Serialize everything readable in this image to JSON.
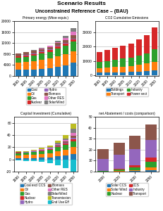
{
  "title": "Scenario Results",
  "subtitle": "Unconstrained Reference Case – (BAU)",
  "chart_data": [
    {
      "type": "bar",
      "title": "Primary energy (Mtoe equiv.)",
      "stacked": true,
      "grid": true,
      "categories": [
        "1990",
        "1995",
        "2000",
        "2005",
        "2010",
        "2020",
        "2030",
        "2050"
      ],
      "ylim": [
        0,
        20000
      ],
      "yticks": [
        0,
        4000,
        8000,
        12000,
        16000,
        20000
      ],
      "series": [
        {
          "name": "Coal",
          "values": [
            2200,
            2300,
            2400,
            2600,
            2900,
            3400,
            3900,
            4800
          ]
        },
        {
          "name": "Oil",
          "values": [
            2800,
            2900,
            3100,
            3300,
            3500,
            3800,
            4000,
            4200
          ]
        },
        {
          "name": "Gas",
          "values": [
            1600,
            1800,
            2000,
            2200,
            2400,
            2800,
            3100,
            3500
          ]
        },
        {
          "name": "Nuclear",
          "values": [
            500,
            520,
            550,
            580,
            610,
            660,
            720,
            850
          ]
        },
        {
          "name": "Hydro",
          "values": [
            180,
            190,
            200,
            210,
            225,
            250,
            280,
            340
          ]
        },
        {
          "name": "Biomass",
          "values": [
            900,
            920,
            940,
            960,
            980,
            1020,
            1080,
            1200
          ]
        },
        {
          "name": "Other RES",
          "values": [
            50,
            80,
            130,
            200,
            300,
            500,
            750,
            1200
          ]
        },
        {
          "name": "Solar/Wind",
          "values": [
            20,
            40,
            70,
            120,
            200,
            420,
            700,
            1400
          ]
        }
      ]
    },
    {
      "type": "bar",
      "title": "CO2 Cumulative Emissions",
      "stacked": true,
      "grid": true,
      "categories": [
        "1990",
        "1995",
        "2000",
        "2005",
        "2010",
        "2020",
        "2030",
        "2050"
      ],
      "ylim": [
        -500,
        38000
      ],
      "yticks": [
        0,
        10000,
        20000,
        30000
      ],
      "series": [
        {
          "name": "Buildings",
          "values": [
            1800,
            1900,
            2000,
            2200,
            2400,
            2700,
            3000,
            3600
          ]
        },
        {
          "name": "Transport",
          "values": [
            3200,
            3400,
            3700,
            3900,
            4200,
            4700,
            5200,
            6000
          ]
        },
        {
          "name": "Industry",
          "values": [
            4500,
            4800,
            5100,
            5500,
            5900,
            6600,
            7300,
            8500
          ]
        },
        {
          "name": "Power sect",
          "values": [
            7000,
            7500,
            8200,
            9000,
            9800,
            11200,
            12800,
            15500
          ]
        }
      ]
    },
    {
      "type": "bar",
      "title": "Capital Investment (Cumulative)",
      "stacked": true,
      "grid": true,
      "categories": [
        "1990",
        "1995",
        "2000",
        "2005",
        "2010",
        "2020",
        "2030",
        "2050"
      ],
      "ylim": [
        -20,
        70
      ],
      "yticks": [
        -20,
        0,
        20,
        40,
        60
      ],
      "series": [
        {
          "name": "Coal excl CCS",
          "values": [
            2,
            2.2,
            2.5,
            3,
            3.5,
            5,
            6.5,
            9
          ]
        },
        {
          "name": "Oil",
          "values": [
            5,
            5.2,
            5.5,
            6,
            6.5,
            8,
            9,
            11
          ]
        },
        {
          "name": "Gas",
          "values": [
            3,
            3.2,
            3.8,
            4.5,
            5.5,
            7,
            8,
            10
          ]
        },
        {
          "name": "Nuclear",
          "values": [
            1,
            1,
            1,
            1.2,
            1.3,
            1.8,
            2.5,
            3.5
          ]
        },
        {
          "name": "Hydro",
          "values": [
            0.5,
            0.5,
            0.6,
            0.7,
            0.8,
            1.0,
            1.3,
            1.8
          ]
        },
        {
          "name": "Biomass",
          "values": [
            0.3,
            0.4,
            0.5,
            0.6,
            0.8,
            1.2,
            1.8,
            3
          ]
        },
        {
          "name": "Other RES",
          "values": [
            0.1,
            0.2,
            0.3,
            0.5,
            0.8,
            1.5,
            2.5,
            5
          ]
        },
        {
          "name": "Solar/Wind",
          "values": [
            0.05,
            0.1,
            0.2,
            0.4,
            0.7,
            1.5,
            3,
            7
          ]
        },
        {
          "name": "Transmission",
          "values": [
            1,
            1.2,
            1.5,
            2,
            2.5,
            3.5,
            5,
            8
          ]
        },
        {
          "name": "End Use Eff",
          "values": [
            -2,
            -2.5,
            -3,
            -4,
            -6,
            -10,
            -14,
            -20
          ]
        }
      ]
    },
    {
      "type": "bar",
      "title": "net Abatement / costs (comparison)",
      "stacked": true,
      "grid": true,
      "categories": [
        "2000",
        "2020",
        "2030",
        "2050"
      ],
      "ylim": [
        0,
        50
      ],
      "yticks": [
        0,
        10,
        20,
        30,
        40,
        50
      ],
      "series": [
        {
          "name": "Solar CCS",
          "values": [
            0.1,
            0.3,
            0.6,
            1.5
          ]
        },
        {
          "name": "Solar Wind",
          "values": [
            0.2,
            0.5,
            1.0,
            2.5
          ]
        },
        {
          "name": "Nuclear",
          "values": [
            0.5,
            1.2,
            2.5,
            5.0
          ]
        },
        {
          "name": "CCS",
          "values": [
            0,
            0.3,
            1.5,
            4.0
          ]
        },
        {
          "name": "Industry",
          "values": [
            11,
            13,
            15,
            16
          ]
        },
        {
          "name": "Transport",
          "values": [
            9,
            11,
            12,
            14
          ]
        }
      ]
    }
  ]
}
